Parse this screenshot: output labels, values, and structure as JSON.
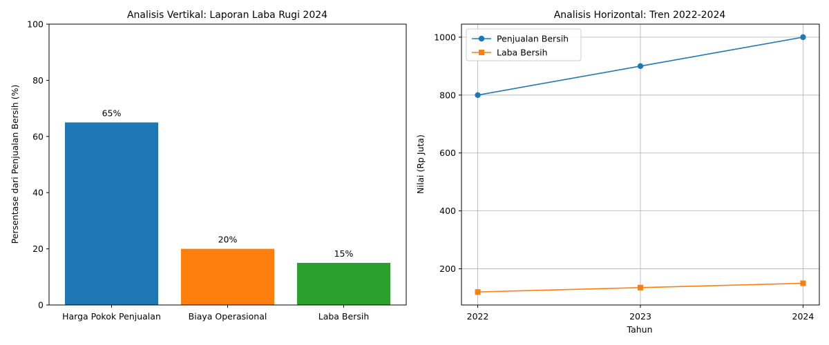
{
  "chart_data": [
    {
      "type": "bar",
      "title": "Analisis Vertikal: Laporan Laba Rugi 2024",
      "xlabel": "",
      "ylabel": "Persentase dari Penjualan Bersih (%)",
      "categories": [
        "Harga Pokok Penjualan",
        "Biaya Operasional",
        "Laba Bersih"
      ],
      "values": [
        65,
        20,
        15
      ],
      "data_labels": [
        "65%",
        "20%",
        "15%"
      ],
      "colors": [
        "#1f77b4",
        "#ff7f0e",
        "#2ca02c"
      ],
      "ylim": [
        0,
        100
      ],
      "yticks": [
        0,
        20,
        40,
        60,
        80,
        100
      ],
      "grid": false
    },
    {
      "type": "line",
      "title": "Analisis Horizontal: Tren 2022-2024",
      "xlabel": "Tahun",
      "ylabel": "Nilai (Rp Juta)",
      "x": [
        2022,
        2023,
        2024
      ],
      "xticks": [
        "2022",
        "2023",
        "2024"
      ],
      "series": [
        {
          "name": "Penjualan Bersih",
          "values": [
            800,
            900,
            1000
          ],
          "color": "#1f77b4",
          "marker": "circle"
        },
        {
          "name": "Laba Bersih",
          "values": [
            120,
            135,
            150
          ],
          "color": "#ff7f0e",
          "marker": "square"
        }
      ],
      "ylim": [
        75,
        1045
      ],
      "yticks": [
        200,
        400,
        600,
        800,
        1000
      ],
      "grid": true,
      "legend": "top-left"
    }
  ]
}
